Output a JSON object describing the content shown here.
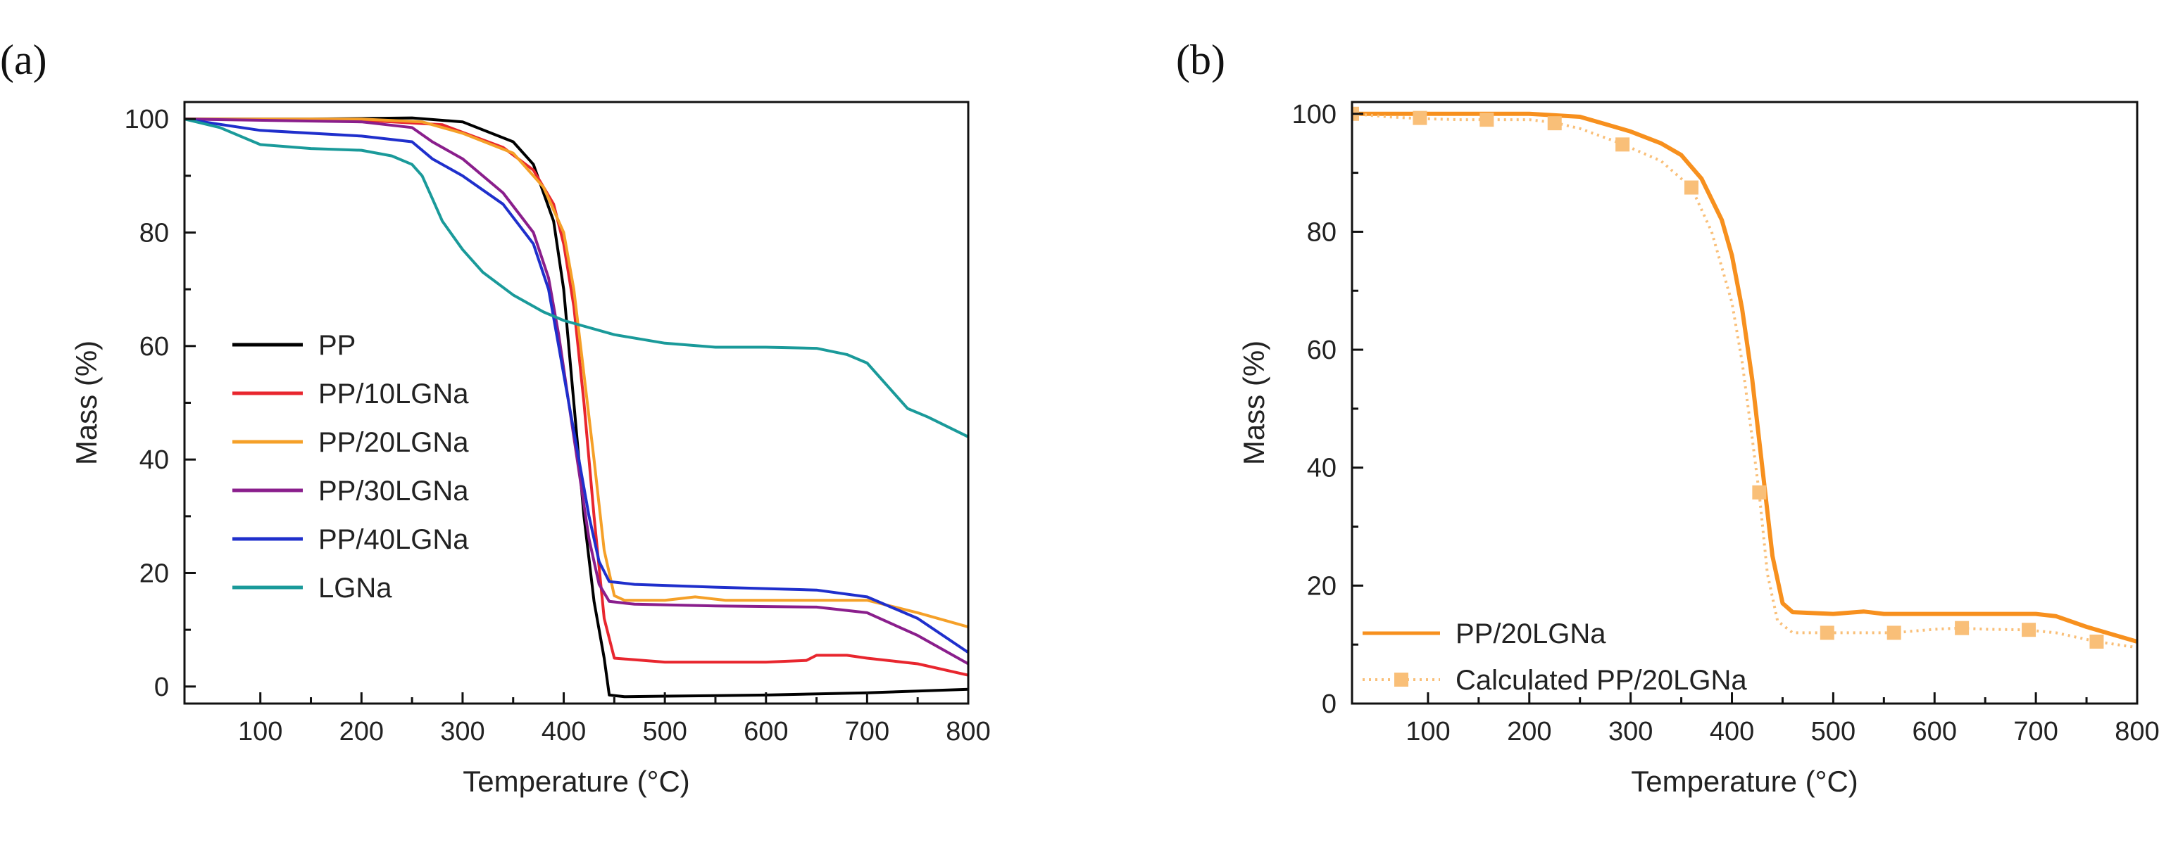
{
  "chart_data": [
    {
      "panel": "(a)",
      "type": "line",
      "xlabel": "Temperature (°C)",
      "ylabel": "Mass (%)",
      "xlim": [
        25,
        800
      ],
      "ylim": [
        -3,
        103
      ],
      "xticks": [
        100,
        200,
        300,
        400,
        500,
        600,
        700,
        800
      ],
      "yticks": [
        0,
        20,
        40,
        60,
        80,
        100
      ],
      "legend_position": "center-left",
      "series": [
        {
          "name": "PP",
          "color": "#000000",
          "x": [
            25,
            150,
            250,
            300,
            350,
            370,
            390,
            400,
            410,
            420,
            430,
            440,
            445,
            460,
            500,
            600,
            700,
            800
          ],
          "y": [
            100,
            100,
            100.2,
            99.5,
            96,
            92,
            82,
            70,
            50,
            30,
            15,
            5,
            -1.5,
            -1.8,
            -1.7,
            -1.5,
            -1.1,
            -0.5
          ]
        },
        {
          "name": "PP/10LGNa",
          "color": "#e8262e",
          "x": [
            25,
            200,
            280,
            340,
            370,
            390,
            400,
            410,
            420,
            430,
            440,
            450,
            500,
            600,
            640,
            650,
            680,
            700,
            750,
            800
          ],
          "y": [
            100,
            99.8,
            99,
            95,
            91,
            85,
            78,
            67,
            50,
            30,
            12,
            5,
            4.3,
            4.3,
            4.6,
            5.5,
            5.5,
            5,
            4,
            2
          ]
        },
        {
          "name": "PP/20LGNa",
          "color": "#f5a028",
          "x": [
            25,
            200,
            260,
            300,
            350,
            380,
            400,
            410,
            420,
            430,
            440,
            450,
            460,
            500,
            530,
            560,
            650,
            700,
            750,
            800
          ],
          "y": [
            100,
            100,
            99.5,
            97.5,
            94,
            88,
            80,
            70,
            55,
            40,
            24,
            16,
            15.2,
            15.2,
            15.8,
            15.2,
            15.2,
            15.2,
            13,
            10.5
          ]
        },
        {
          "name": "PP/30LGNa",
          "color": "#8a1e8c",
          "x": [
            25,
            200,
            250,
            270,
            300,
            340,
            370,
            385,
            395,
            405,
            415,
            425,
            435,
            445,
            470,
            550,
            650,
            700,
            750,
            800
          ],
          "y": [
            100,
            99.5,
            98.5,
            96,
            93,
            87,
            80,
            72,
            62,
            50,
            38,
            26,
            18,
            15,
            14.5,
            14.2,
            14,
            13,
            9,
            4
          ]
        },
        {
          "name": "PP/40LGNa",
          "color": "#1f2fcc",
          "x": [
            25,
            100,
            200,
            250,
            270,
            300,
            340,
            370,
            385,
            395,
            405,
            415,
            425,
            435,
            445,
            470,
            550,
            650,
            700,
            750,
            800
          ],
          "y": [
            100,
            98,
            97,
            96,
            93,
            90,
            85,
            78,
            70,
            60,
            50,
            40,
            30,
            22,
            18.5,
            18,
            17.5,
            17,
            15.8,
            12,
            6
          ]
        },
        {
          "name": "LGNa",
          "color": "#1a9a9a",
          "x": [
            25,
            60,
            100,
            150,
            200,
            230,
            250,
            260,
            270,
            280,
            300,
            320,
            350,
            380,
            400,
            450,
            500,
            550,
            600,
            650,
            680,
            700,
            720,
            740,
            760,
            800
          ],
          "y": [
            100,
            98.5,
            95.5,
            94.8,
            94.5,
            93.5,
            92,
            90,
            86,
            82,
            77,
            73,
            69,
            66,
            64.5,
            62,
            60.5,
            59.8,
            59.8,
            59.6,
            58.5,
            57,
            53,
            49,
            47.5,
            44
          ]
        }
      ]
    },
    {
      "panel": "(b)",
      "type": "line",
      "xlabel": "Temperature (°C)",
      "ylabel": "Mass (%)",
      "xlim": [
        25,
        800
      ],
      "ylim": [
        0,
        102
      ],
      "xticks": [
        100,
        200,
        300,
        400,
        500,
        600,
        700,
        800
      ],
      "yticks": [
        0,
        20,
        40,
        60,
        80,
        100
      ],
      "legend_position": "bottom-left",
      "series": [
        {
          "name": "PP/20LGNa",
          "color": "#f7901e",
          "style": "solid",
          "x": [
            25,
            100,
            200,
            250,
            280,
            300,
            330,
            350,
            370,
            390,
            400,
            410,
            420,
            430,
            440,
            450,
            460,
            500,
            530,
            550,
            600,
            650,
            700,
            720,
            750,
            780,
            800
          ],
          "y": [
            100,
            100,
            100,
            99.5,
            98,
            97,
            95,
            93,
            89,
            82,
            76,
            67,
            55,
            40,
            25,
            17,
            15.5,
            15.2,
            15.6,
            15.2,
            15.2,
            15.2,
            15.2,
            14.8,
            13,
            11.5,
            10.5
          ]
        },
        {
          "name": "Calculated PP/20LGNa",
          "color": "#f9bf78",
          "style": "dotted",
          "x": [
            25,
            60,
            90,
            130,
            160,
            200,
            225,
            250,
            290,
            330,
            360,
            380,
            400,
            410,
            420,
            427,
            435,
            445,
            460,
            490,
            520,
            560,
            600,
            625,
            650,
            690,
            720,
            760,
            800
          ],
          "y": [
            100,
            99.5,
            99.2,
            99,
            99,
            99,
            98.5,
            97.5,
            95,
            92,
            87.5,
            80,
            68,
            58,
            45,
            35.5,
            22,
            14,
            12,
            12,
            12,
            12,
            12.6,
            12.8,
            12.6,
            12.5,
            12,
            10.5,
            9.5
          ],
          "markers_x": [
            25,
            92,
            158,
            225,
            292,
            360,
            427,
            494,
            560,
            627,
            693,
            760
          ],
          "markers_y": [
            100,
            99.3,
            99,
            98.4,
            94.8,
            87.5,
            35.8,
            12,
            12,
            12.8,
            12.5,
            10.5
          ]
        }
      ]
    }
  ]
}
